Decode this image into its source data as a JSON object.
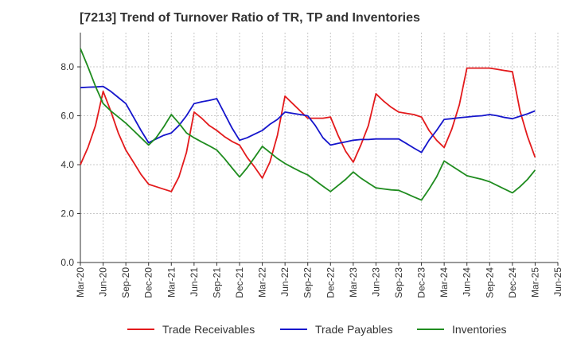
{
  "title": "[7213]  Trend of Turnover Ratio of TR, TP and Inventories",
  "chart_data": {
    "type": "line",
    "title": "[7213]  Trend of Turnover Ratio of TR, TP and Inventories",
    "xlabel": "",
    "ylabel": "",
    "ylim": [
      0,
      9.4
    ],
    "yticks": [
      "0.0",
      "2.0",
      "4.0",
      "6.0",
      "8.0"
    ],
    "ytick_values": [
      0,
      2,
      4,
      6,
      8
    ],
    "grid": true,
    "legend_position": "bottom",
    "xticks": [
      "Mar-20",
      "Jun-20",
      "Sep-20",
      "Dec-20",
      "Mar-21",
      "Jun-21",
      "Sep-21",
      "Dec-21",
      "Mar-22",
      "Jun-22",
      "Sep-22",
      "Dec-22",
      "Mar-23",
      "Jun-23",
      "Sep-23",
      "Dec-23",
      "Mar-24",
      "Jun-24",
      "Sep-24",
      "Dec-24",
      "Mar-25",
      "Jun-25"
    ],
    "x": [
      "Mar-20",
      "Apr-20",
      "May-20",
      "Jun-20",
      "Jul-20",
      "Aug-20",
      "Sep-20",
      "Oct-20",
      "Nov-20",
      "Dec-20",
      "Jan-21",
      "Feb-21",
      "Mar-21",
      "Apr-21",
      "May-21",
      "Jun-21",
      "Jul-21",
      "Aug-21",
      "Sep-21",
      "Oct-21",
      "Nov-21",
      "Dec-21",
      "Jan-22",
      "Feb-22",
      "Mar-22",
      "Apr-22",
      "May-22",
      "Jun-22",
      "Jul-22",
      "Aug-22",
      "Sep-22",
      "Oct-22",
      "Nov-22",
      "Dec-22",
      "Jan-23",
      "Feb-23",
      "Mar-23",
      "Apr-23",
      "May-23",
      "Jun-23",
      "Jul-23",
      "Aug-23",
      "Sep-23",
      "Oct-23",
      "Nov-23",
      "Dec-23",
      "Jan-24",
      "Feb-24",
      "Mar-24",
      "Apr-24",
      "May-24",
      "Jun-24",
      "Jul-24",
      "Aug-24",
      "Sep-24",
      "Oct-24",
      "Nov-24",
      "Dec-24",
      "Jan-25",
      "Feb-25",
      "Mar-25"
    ],
    "series": [
      {
        "name": "Trade Receivables",
        "color": "#e31a1c",
        "values": [
          4.0,
          4.7,
          5.6,
          7.0,
          6.2,
          5.3,
          4.6,
          4.1,
          3.6,
          3.2,
          3.1,
          3.0,
          2.9,
          3.5,
          4.5,
          6.15,
          5.9,
          5.6,
          5.4,
          5.15,
          4.95,
          4.8,
          4.3,
          3.9,
          3.45,
          4.1,
          5.2,
          6.8,
          6.5,
          6.2,
          5.9,
          5.9,
          5.9,
          5.95,
          5.2,
          4.55,
          4.1,
          4.8,
          5.6,
          6.9,
          6.6,
          6.35,
          6.15,
          6.1,
          6.05,
          5.95,
          5.4,
          5.0,
          4.7,
          5.45,
          6.45,
          7.95,
          7.95,
          7.95,
          7.95,
          7.9,
          7.85,
          7.8,
          6.2,
          5.15,
          4.3
        ]
      },
      {
        "name": "Trade Payables",
        "color": "#1515cc",
        "values": [
          7.15,
          7.17,
          7.18,
          7.2,
          7.0,
          6.75,
          6.5,
          5.95,
          5.4,
          4.9,
          5.05,
          5.2,
          5.3,
          5.6,
          6.0,
          6.5,
          6.57,
          6.63,
          6.7,
          6.1,
          5.5,
          5.0,
          5.1,
          5.25,
          5.4,
          5.65,
          5.85,
          6.15,
          6.1,
          6.05,
          6.0,
          5.6,
          5.1,
          4.8,
          4.87,
          4.93,
          5.0,
          5.03,
          5.03,
          5.05,
          5.05,
          5.05,
          5.05,
          4.87,
          4.68,
          4.5,
          5.0,
          5.4,
          5.85,
          5.88,
          5.92,
          5.95,
          5.98,
          6.0,
          6.05,
          6.0,
          5.93,
          5.88,
          5.98,
          6.08,
          6.2
        ]
      },
      {
        "name": "Inventories",
        "color": "#1f8c1f",
        "values": [
          8.75,
          8.0,
          7.2,
          6.5,
          6.2,
          5.95,
          5.7,
          5.4,
          5.1,
          4.8,
          5.1,
          5.55,
          6.05,
          5.7,
          5.3,
          5.1,
          4.93,
          4.77,
          4.6,
          4.25,
          3.87,
          3.5,
          3.87,
          4.3,
          4.75,
          4.5,
          4.25,
          4.05,
          3.88,
          3.72,
          3.58,
          3.35,
          3.12,
          2.9,
          3.15,
          3.4,
          3.7,
          3.45,
          3.25,
          3.05,
          3.01,
          2.97,
          2.95,
          2.82,
          2.68,
          2.55,
          3.0,
          3.5,
          4.15,
          3.95,
          3.75,
          3.55,
          3.47,
          3.4,
          3.3,
          3.15,
          3.0,
          2.85,
          3.1,
          3.4,
          3.78
        ]
      }
    ]
  }
}
